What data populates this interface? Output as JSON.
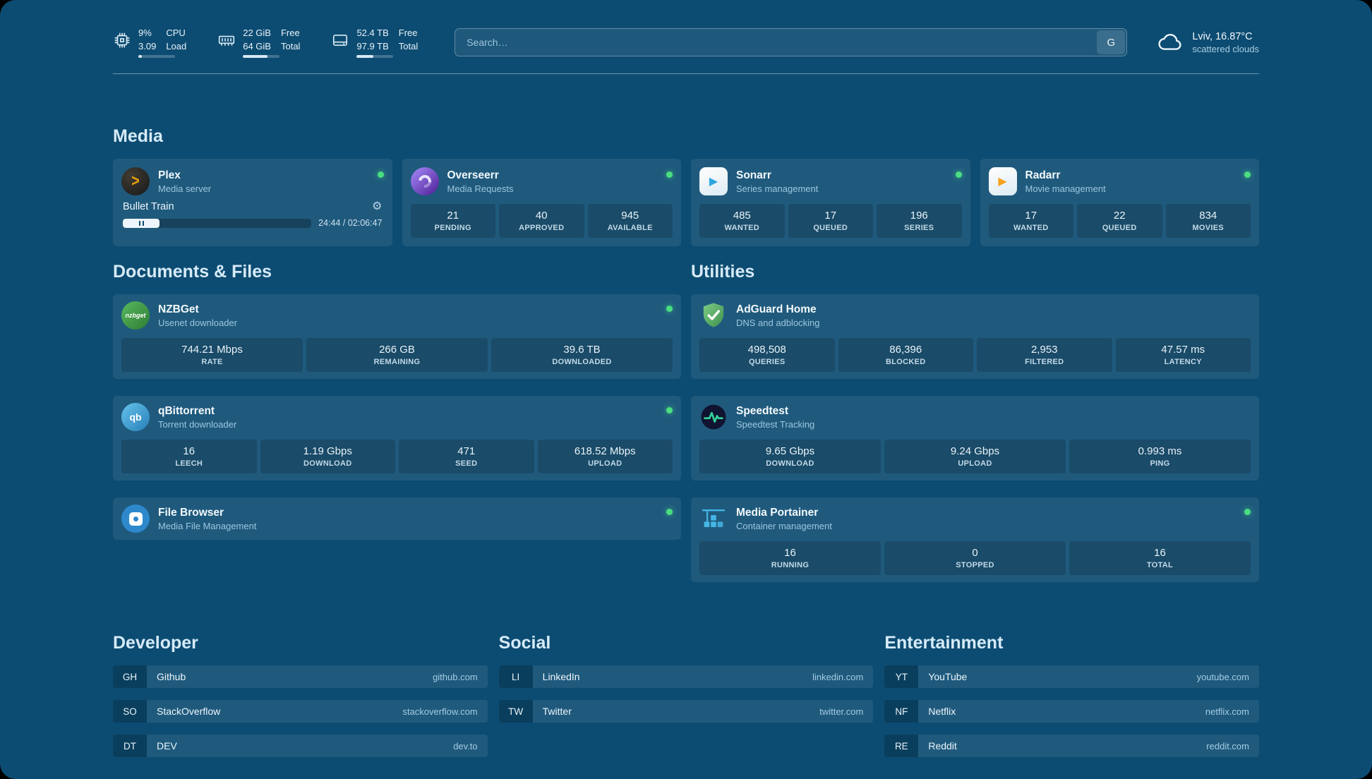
{
  "theme": {
    "background": "#0d4c72",
    "card_tint": "rgba(255,255,255,0.08)",
    "online_green": "#4ade80",
    "accent_text": "#d6ebf7"
  },
  "icons": {
    "plex": ">",
    "play": "▶",
    "nzbget": "nzbget",
    "qbittorrent": "qb",
    "gear": "⚙"
  },
  "topbar": {
    "resources": [
      {
        "values": [
          "9%",
          "3.09"
        ],
        "labels": [
          "CPU",
          "Load"
        ],
        "progress": 9
      },
      {
        "values": [
          "22 GiB",
          "64 GiB"
        ],
        "labels": [
          "Free",
          "Total"
        ],
        "progress": 66
      },
      {
        "values": [
          "52.4 TB",
          "97.9 TB"
        ],
        "labels": [
          "Free",
          "Total"
        ],
        "progress": 46
      }
    ],
    "search": {
      "placeholder": "Search…",
      "provider": "G"
    },
    "weather": {
      "location": "Lviv, 16.87°C",
      "condition": "scattered clouds"
    }
  },
  "sections": {
    "media": {
      "title": "Media",
      "plex": {
        "name": "Plex",
        "desc": "Media server",
        "now_playing": "Bullet Train",
        "time": "24:44 / 02:06:47",
        "progress": 19.5
      },
      "overseerr": {
        "name": "Overseerr",
        "desc": "Media Requests",
        "stats": [
          {
            "value": "21",
            "label": "PENDING"
          },
          {
            "value": "40",
            "label": "APPROVED"
          },
          {
            "value": "945",
            "label": "AVAILABLE"
          }
        ]
      },
      "sonarr": {
        "name": "Sonarr",
        "desc": "Series management",
        "stats": [
          {
            "value": "485",
            "label": "WANTED"
          },
          {
            "value": "17",
            "label": "QUEUED"
          },
          {
            "value": "196",
            "label": "SERIES"
          }
        ]
      },
      "radarr": {
        "name": "Radarr",
        "desc": "Movie management",
        "stats": [
          {
            "value": "17",
            "label": "WANTED"
          },
          {
            "value": "22",
            "label": "QUEUED"
          },
          {
            "value": "834",
            "label": "MOVIES"
          }
        ]
      }
    },
    "documents": {
      "title": "Documents & Files",
      "nzbget": {
        "name": "NZBGet",
        "desc": "Usenet downloader",
        "stats": [
          {
            "value": "744.21 Mbps",
            "label": "RATE"
          },
          {
            "value": "266 GB",
            "label": "REMAINING"
          },
          {
            "value": "39.6 TB",
            "label": "DOWNLOADED"
          }
        ]
      },
      "qbittorrent": {
        "name": "qBittorrent",
        "desc": "Torrent downloader",
        "stats": [
          {
            "value": "16",
            "label": "LEECH"
          },
          {
            "value": "1.19 Gbps",
            "label": "DOWNLOAD"
          },
          {
            "value": "471",
            "label": "SEED"
          },
          {
            "value": "618.52 Mbps",
            "label": "UPLOAD"
          }
        ]
      },
      "filebrowser": {
        "name": "File Browser",
        "desc": "Media File Management"
      }
    },
    "utilities": {
      "title": "Utilities",
      "adguard": {
        "name": "AdGuard Home",
        "desc": "DNS and adblocking",
        "stats": [
          {
            "value": "498,508",
            "label": "QUERIES"
          },
          {
            "value": "86,396",
            "label": "BLOCKED"
          },
          {
            "value": "2,953",
            "label": "FILTERED"
          },
          {
            "value": "47.57 ms",
            "label": "LATENCY"
          }
        ]
      },
      "speedtest": {
        "name": "Speedtest",
        "desc": "Speedtest Tracking",
        "stats": [
          {
            "value": "9.65 Gbps",
            "label": "DOWNLOAD"
          },
          {
            "value": "9.24 Gbps",
            "label": "UPLOAD"
          },
          {
            "value": "0.993 ms",
            "label": "PING"
          }
        ]
      },
      "portainer": {
        "name": "Media Portainer",
        "desc": "Container management",
        "stats": [
          {
            "value": "16",
            "label": "RUNNING"
          },
          {
            "value": "0",
            "label": "STOPPED"
          },
          {
            "value": "16",
            "label": "TOTAL"
          }
        ]
      }
    }
  },
  "bookmarks": {
    "developer": {
      "title": "Developer",
      "items": [
        {
          "abbr": "GH",
          "name": "Github",
          "domain": "github.com"
        },
        {
          "abbr": "SO",
          "name": "StackOverflow",
          "domain": "stackoverflow.com"
        },
        {
          "abbr": "DT",
          "name": "DEV",
          "domain": "dev.to"
        }
      ]
    },
    "social": {
      "title": "Social",
      "items": [
        {
          "abbr": "LI",
          "name": "LinkedIn",
          "domain": "linkedin.com"
        },
        {
          "abbr": "TW",
          "name": "Twitter",
          "domain": "twitter.com"
        }
      ]
    },
    "entertainment": {
      "title": "Entertainment",
      "items": [
        {
          "abbr": "YT",
          "name": "YouTube",
          "domain": "youtube.com"
        },
        {
          "abbr": "NF",
          "name": "Netflix",
          "domain": "netflix.com"
        },
        {
          "abbr": "RE",
          "name": "Reddit",
          "domain": "reddit.com"
        }
      ]
    }
  }
}
